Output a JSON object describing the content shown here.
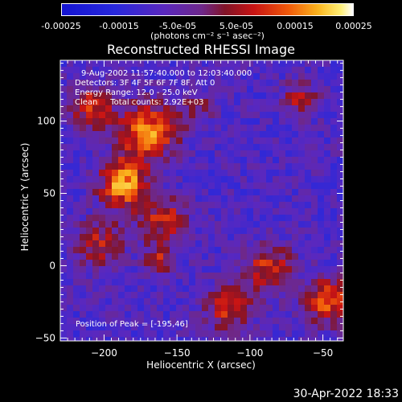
{
  "colorbar": {
    "ticks": [
      "-0.00025",
      "-0.00015",
      "-5.0e-05",
      "5.0e-05",
      "0.00015",
      "0.00025"
    ],
    "units": "(photons cm⁻² s⁻¹ asec⁻²)"
  },
  "info": {
    "time": "9-Aug-2002 11:57:40.000 to 12:03:40.000",
    "detectors": "Detectors: 3F 4F 5F 6F 7F 8F, Att 0",
    "energy": "Energy Range: 12.0 - 25.0 keV",
    "clean": "Clean     Total counts: 2.92E+03"
  },
  "peak": "Position of Peak = [-195,46]",
  "datestamp": "30-Apr-2022 18:33",
  "chart_data": {
    "type": "heatmap",
    "title": "Reconstructed RHESSI Image",
    "xlabel": "Heliocentric X (arcsec)",
    "ylabel": "Heliocentric Y (arcsec)",
    "xlim": [
      -230,
      -36
    ],
    "ylim": [
      -52,
      142
    ],
    "xticks": [
      -200,
      -150,
      -100,
      -50
    ],
    "yticks": [
      -50,
      0,
      50,
      100
    ],
    "colorscale_range": [
      -0.00025,
      0.00025
    ],
    "peak_position": [
      -195,
      46
    ]
  }
}
